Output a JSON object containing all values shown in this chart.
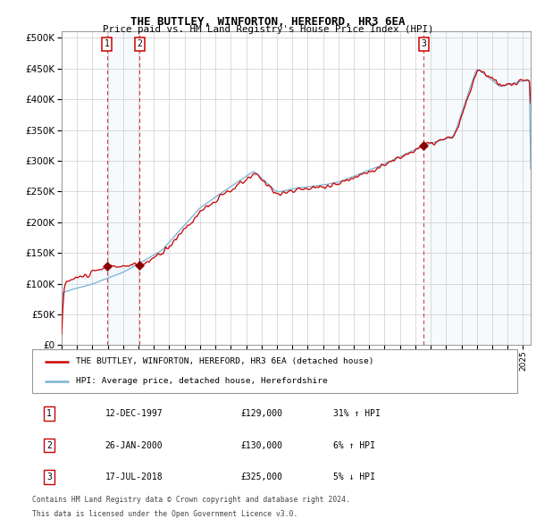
{
  "title": "THE BUTTLEY, WINFORTON, HEREFORD, HR3 6EA",
  "subtitle": "Price paid vs. HM Land Registry's House Price Index (HPI)",
  "legend_line1": "THE BUTTLEY, WINFORTON, HEREFORD, HR3 6EA (detached house)",
  "legend_line2": "HPI: Average price, detached house, Herefordshire",
  "footer1": "Contains HM Land Registry data © Crown copyright and database right 2024.",
  "footer2": "This data is licensed under the Open Government Licence v3.0.",
  "sales": [
    {
      "num": 1,
      "date": "12-DEC-1997",
      "price": 129000,
      "pct": "31%",
      "dir": "↑"
    },
    {
      "num": 2,
      "date": "26-JAN-2000",
      "price": 130000,
      "pct": "6%",
      "dir": "↑"
    },
    {
      "num": 3,
      "date": "17-JUL-2018",
      "price": 325000,
      "pct": "5%",
      "dir": "↓"
    }
  ],
  "sale_dates_decimal": [
    1997.95,
    2000.07,
    2018.54
  ],
  "sale_prices": [
    129000,
    130000,
    325000
  ],
  "hpi_color": "#7ab3d4",
  "price_color": "#cc0000",
  "vline_color": "#cc0000",
  "marker_color": "#8b0000",
  "shade_color": "#d6e8f5",
  "ylim": [
    0,
    510000
  ],
  "yticks": [
    0,
    50000,
    100000,
    150000,
    200000,
    250000,
    300000,
    350000,
    400000,
    450000,
    500000
  ],
  "start_year": 1995.0,
  "end_year": 2025.5,
  "background_color": "#ffffff",
  "grid_color": "#cccccc",
  "hpi_control_years": [
    1995.0,
    1997.0,
    1999.0,
    2001.5,
    2004.0,
    2007.5,
    2009.0,
    2010.0,
    2013.0,
    2016.0,
    2018.5,
    2020.5,
    2022.0,
    2023.5,
    2025.0
  ],
  "hpi_control_vals": [
    85000,
    100000,
    120000,
    155000,
    225000,
    285000,
    250000,
    255000,
    265000,
    295000,
    325000,
    340000,
    450000,
    420000,
    430000
  ]
}
